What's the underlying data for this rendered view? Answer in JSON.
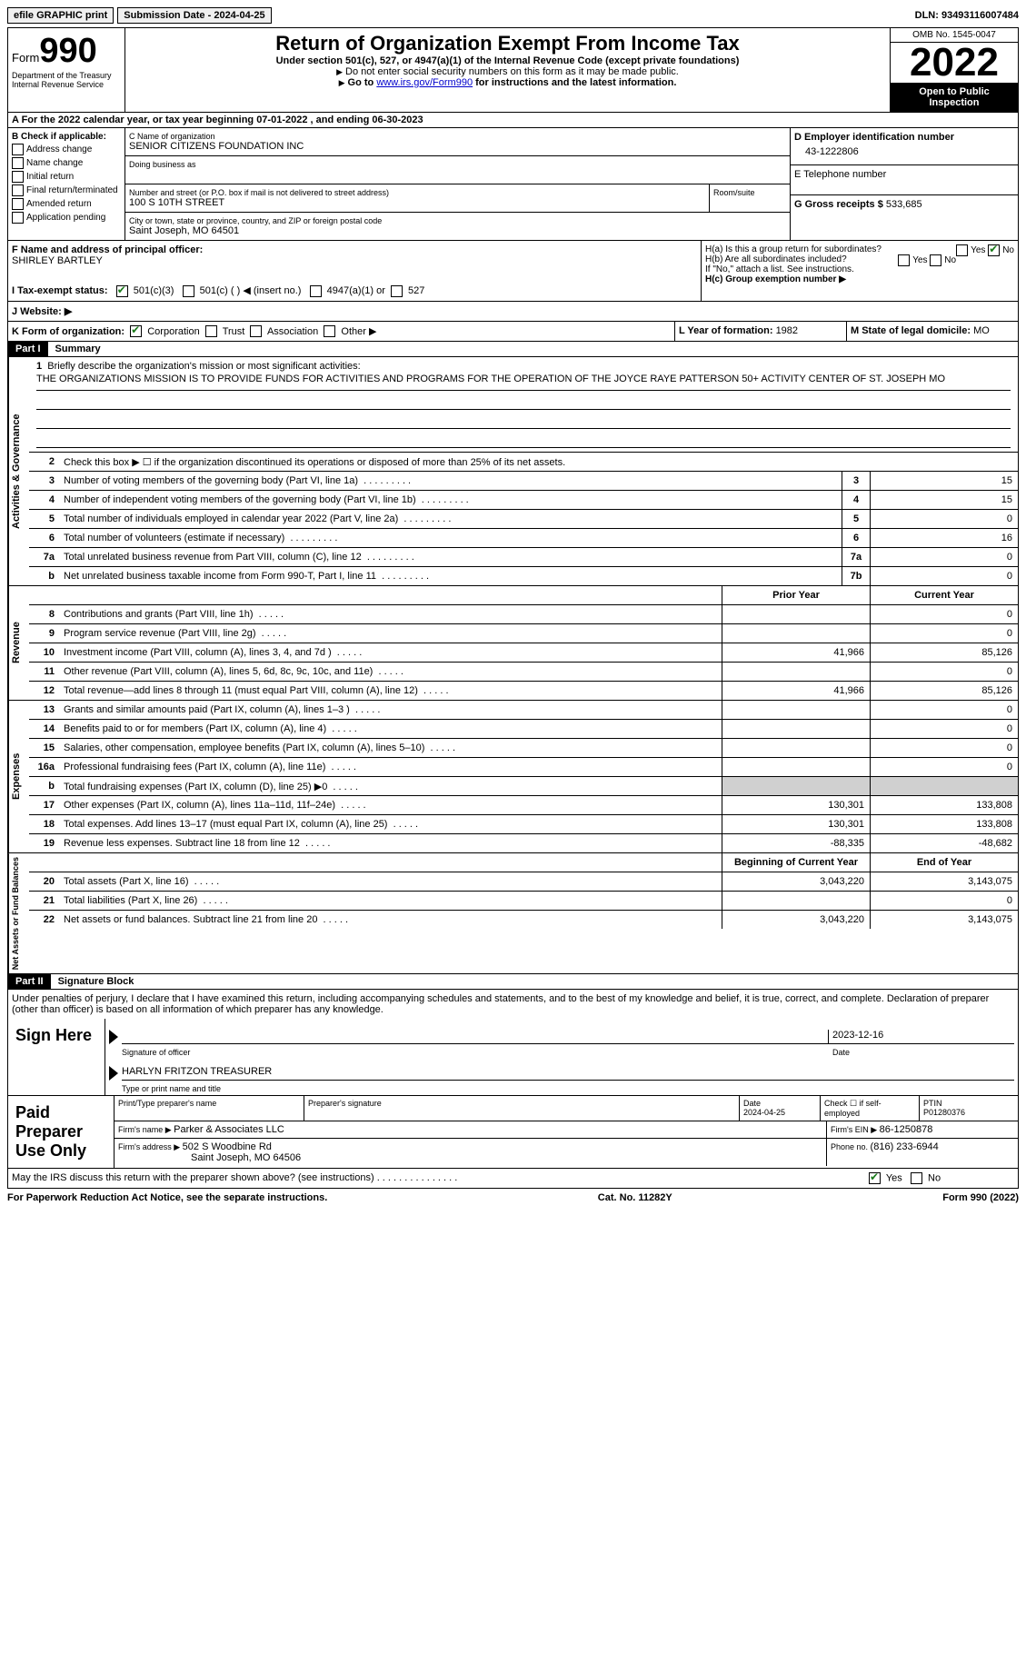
{
  "topbar": {
    "efile": "efile GRAPHIC print",
    "submission_label": "Submission Date - ",
    "submission_date": "2024-04-25",
    "dln_label": "DLN: ",
    "dln": "93493116007484"
  },
  "header": {
    "form_label": "Form",
    "form_num": "990",
    "dept": "Department of the Treasury",
    "irs": "Internal Revenue Service",
    "title": "Return of Organization Exempt From Income Tax",
    "subtitle": "Under section 501(c), 527, or 4947(a)(1) of the Internal Revenue Code (except private foundations)",
    "note1": "Do not enter social security numbers on this form as it may be made public.",
    "note2_pre": "Go to ",
    "note2_link": "www.irs.gov/Form990",
    "note2_post": " for instructions and the latest information.",
    "omb": "OMB No. 1545-0047",
    "year": "2022",
    "open": "Open to Public Inspection"
  },
  "row_a": "A For the 2022 calendar year, or tax year beginning 07-01-2022   , and ending 06-30-2023",
  "box_b": {
    "label": "B Check if applicable:",
    "items": [
      "Address change",
      "Name change",
      "Initial return",
      "Final return/terminated",
      "Amended return",
      "Application pending"
    ]
  },
  "box_c": {
    "name_label": "C Name of organization",
    "name": "SENIOR CITIZENS FOUNDATION INC",
    "dba_label": "Doing business as",
    "street_label": "Number and street (or P.O. box if mail is not delivered to street address)",
    "room_label": "Room/suite",
    "street": "100 S 10TH STREET",
    "city_label": "City or town, state or province, country, and ZIP or foreign postal code",
    "city": "Saint Joseph, MO  64501"
  },
  "box_d": {
    "label": "D Employer identification number",
    "value": "43-1222806"
  },
  "box_e": {
    "label": "E Telephone number",
    "value": ""
  },
  "box_g": {
    "label": "G Gross receipts $ ",
    "value": "533,685"
  },
  "box_f": {
    "label": "F Name and address of principal officer:",
    "name": "SHIRLEY BARTLEY"
  },
  "box_h": {
    "ha": "H(a)  Is this a group return for subordinates?",
    "hb": "H(b)  Are all subordinates included?",
    "hb_note": "If \"No,\" attach a list. See instructions.",
    "hc": "H(c)  Group exemption number ▶",
    "yes": "Yes",
    "no": "No"
  },
  "row_i": {
    "label": "I  Tax-exempt status:",
    "c3": "501(c)(3)",
    "c": "501(c) (  ) ◀ (insert no.)",
    "a1": "4947(a)(1) or",
    "s527": "527"
  },
  "row_j": {
    "label": "J  Website: ▶"
  },
  "row_k": {
    "label": "K Form of organization:",
    "corp": "Corporation",
    "trust": "Trust",
    "assoc": "Association",
    "other": "Other ▶"
  },
  "row_l": {
    "label": "L Year of formation: ",
    "value": "1982"
  },
  "row_m": {
    "label": "M State of legal domicile: ",
    "value": "MO"
  },
  "part1": {
    "header": "Part I",
    "title": "Summary",
    "vert_ag": "Activities & Governance",
    "vert_rev": "Revenue",
    "vert_exp": "Expenses",
    "vert_net": "Net Assets or Fund Balances",
    "l1": "Briefly describe the organization's mission or most significant activities:",
    "mission": "THE ORGANIZATIONS MISSION IS TO PROVIDE FUNDS FOR ACTIVITIES AND PROGRAMS FOR THE OPERATION OF THE JOYCE RAYE PATTERSON 50+ ACTIVITY CENTER OF ST. JOSEPH MO",
    "l2": "Check this box ▶ ☐ if the organization discontinued its operations or disposed of more than 25% of its net assets.",
    "rows_ag": [
      {
        "n": "3",
        "label": "Number of voting members of the governing body (Part VI, line 1a)",
        "box": "3",
        "val": "15"
      },
      {
        "n": "4",
        "label": "Number of independent voting members of the governing body (Part VI, line 1b)",
        "box": "4",
        "val": "15"
      },
      {
        "n": "5",
        "label": "Total number of individuals employed in calendar year 2022 (Part V, line 2a)",
        "box": "5",
        "val": "0"
      },
      {
        "n": "6",
        "label": "Total number of volunteers (estimate if necessary)",
        "box": "6",
        "val": "16"
      },
      {
        "n": "7a",
        "label": "Total unrelated business revenue from Part VIII, column (C), line 12",
        "box": "7a",
        "val": "0"
      },
      {
        "n": "b",
        "label": "Net unrelated business taxable income from Form 990-T, Part I, line 11",
        "box": "7b",
        "val": "0"
      }
    ],
    "col_prior": "Prior Year",
    "col_current": "Current Year",
    "rows_rev": [
      {
        "n": "8",
        "label": "Contributions and grants (Part VIII, line 1h)",
        "prior": "",
        "cur": "0"
      },
      {
        "n": "9",
        "label": "Program service revenue (Part VIII, line 2g)",
        "prior": "",
        "cur": "0"
      },
      {
        "n": "10",
        "label": "Investment income (Part VIII, column (A), lines 3, 4, and 7d )",
        "prior": "41,966",
        "cur": "85,126"
      },
      {
        "n": "11",
        "label": "Other revenue (Part VIII, column (A), lines 5, 6d, 8c, 9c, 10c, and 11e)",
        "prior": "",
        "cur": "0"
      },
      {
        "n": "12",
        "label": "Total revenue—add lines 8 through 11 (must equal Part VIII, column (A), line 12)",
        "prior": "41,966",
        "cur": "85,126"
      }
    ],
    "rows_exp": [
      {
        "n": "13",
        "label": "Grants and similar amounts paid (Part IX, column (A), lines 1–3 )",
        "prior": "",
        "cur": "0"
      },
      {
        "n": "14",
        "label": "Benefits paid to or for members (Part IX, column (A), line 4)",
        "prior": "",
        "cur": "0"
      },
      {
        "n": "15",
        "label": "Salaries, other compensation, employee benefits (Part IX, column (A), lines 5–10)",
        "prior": "",
        "cur": "0"
      },
      {
        "n": "16a",
        "label": "Professional fundraising fees (Part IX, column (A), line 11e)",
        "prior": "",
        "cur": "0"
      },
      {
        "n": "b",
        "label": "Total fundraising expenses (Part IX, column (D), line 25) ▶0",
        "prior": "grey",
        "cur": "grey"
      },
      {
        "n": "17",
        "label": "Other expenses (Part IX, column (A), lines 11a–11d, 11f–24e)",
        "prior": "130,301",
        "cur": "133,808"
      },
      {
        "n": "18",
        "label": "Total expenses. Add lines 13–17 (must equal Part IX, column (A), line 25)",
        "prior": "130,301",
        "cur": "133,808"
      },
      {
        "n": "19",
        "label": "Revenue less expenses. Subtract line 18 from line 12",
        "prior": "-88,335",
        "cur": "-48,682"
      }
    ],
    "col_begin": "Beginning of Current Year",
    "col_end": "End of Year",
    "rows_net": [
      {
        "n": "20",
        "label": "Total assets (Part X, line 16)",
        "prior": "3,043,220",
        "cur": "3,143,075"
      },
      {
        "n": "21",
        "label": "Total liabilities (Part X, line 26)",
        "prior": "",
        "cur": "0"
      },
      {
        "n": "22",
        "label": "Net assets or fund balances. Subtract line 21 from line 20",
        "prior": "3,043,220",
        "cur": "3,143,075"
      }
    ]
  },
  "part2": {
    "header": "Part II",
    "title": "Signature Block",
    "decl": "Under penalties of perjury, I declare that I have examined this return, including accompanying schedules and statements, and to the best of my knowledge and belief, it is true, correct, and complete. Declaration of preparer (other than officer) is based on all information of which preparer has any knowledge.",
    "sign_here": "Sign Here",
    "sig_officer": "Signature of officer",
    "sig_date": "2023-12-16",
    "date_label": "Date",
    "officer_name": "HARLYN FRITZON  TREASURER",
    "type_name": "Type or print name and title",
    "paid": "Paid Preparer Use Only",
    "prep_name_label": "Print/Type preparer's name",
    "prep_sig_label": "Preparer's signature",
    "prep_date_label": "Date",
    "prep_date": "2024-04-25",
    "check_if": "Check ☐ if self-employed",
    "ptin_label": "PTIN",
    "ptin": "P01280376",
    "firm_name_label": "Firm's name    ▶ ",
    "firm_name": "Parker & Associates LLC",
    "firm_ein_label": "Firm's EIN ▶ ",
    "firm_ein": "86-1250878",
    "firm_addr_label": "Firm's address ▶ ",
    "firm_addr1": "502 S Woodbine Rd",
    "firm_addr2": "Saint Joseph, MO  64506",
    "phone_label": "Phone no. ",
    "phone": "(816) 233-6944",
    "may_irs": "May the IRS discuss this return with the preparer shown above? (see instructions)",
    "yes": "Yes",
    "no": "No"
  },
  "footer": {
    "left": "For Paperwork Reduction Act Notice, see the separate instructions.",
    "mid": "Cat. No. 11282Y",
    "right": "Form 990 (2022)"
  }
}
